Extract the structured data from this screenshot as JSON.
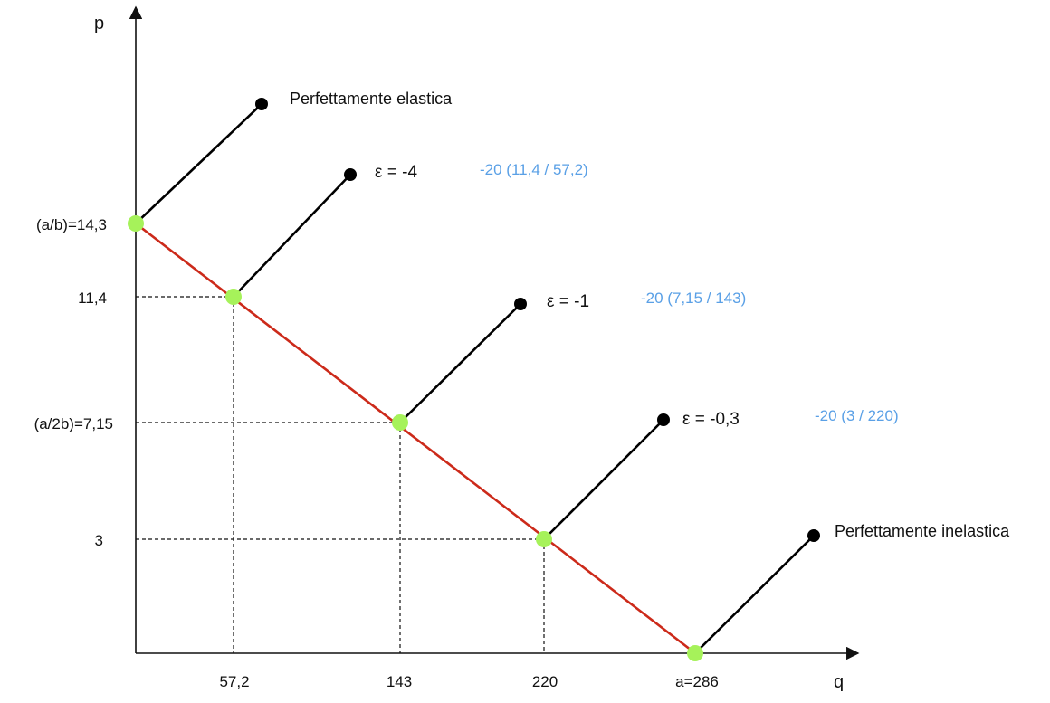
{
  "axes": {
    "y_label": "p",
    "x_label": "q"
  },
  "y_ticks": [
    "(a/b)=14,3",
    "11,4",
    "(a/2b)=7,15",
    "3"
  ],
  "x_ticks": [
    "57,2",
    "143",
    "220",
    "a=286"
  ],
  "demand_points": [
    {
      "q": 0,
      "p": 14.3
    },
    {
      "q": 57.2,
      "p": 11.4
    },
    {
      "q": 143,
      "p": 7.15
    },
    {
      "q": 220,
      "p": 3
    },
    {
      "q": 286,
      "p": 0
    }
  ],
  "annotations": [
    {
      "label": "Perfettamente elastica",
      "note": ""
    },
    {
      "label": "ε = -4",
      "note": "-20 (11,4 / 57,2)"
    },
    {
      "label": "ε = -1",
      "note": "-20 (7,15 / 143)"
    },
    {
      "label": "ε = -0,3",
      "note": "-20 (3 / 220)"
    },
    {
      "label": "Perfettamente inelastica",
      "note": ""
    }
  ],
  "colors": {
    "axis": "#111111",
    "demand_line": "#cc2a1a",
    "point": "#a6f25a",
    "pointer": "#000000",
    "note": "#5aa0e6"
  }
}
